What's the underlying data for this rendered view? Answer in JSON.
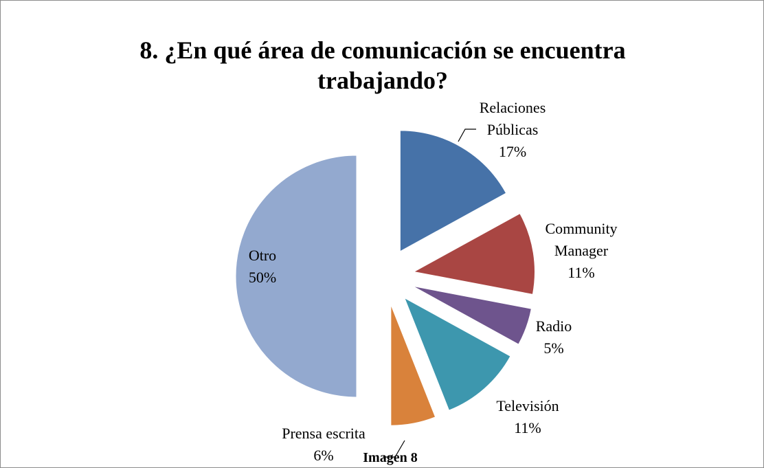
{
  "chart_data": {
    "type": "pie",
    "title": "8. ¿En qué área de comunicación se encuentra trabajando?",
    "categories": [
      "Relaciones Públicas",
      "Community Manager",
      "Radio",
      "Televisión",
      "Prensa escrita",
      "Otro"
    ],
    "values": [
      17,
      11,
      5,
      11,
      6,
      50
    ],
    "value_labels": [
      "17%",
      "11%",
      "5%",
      "11%",
      "6%",
      "50%"
    ],
    "colors": [
      "#4672a8",
      "#a94643",
      "#6e548d",
      "#3d97ae",
      "#d9823b",
      "#93a9cf"
    ],
    "caption": "Imagen  8"
  }
}
